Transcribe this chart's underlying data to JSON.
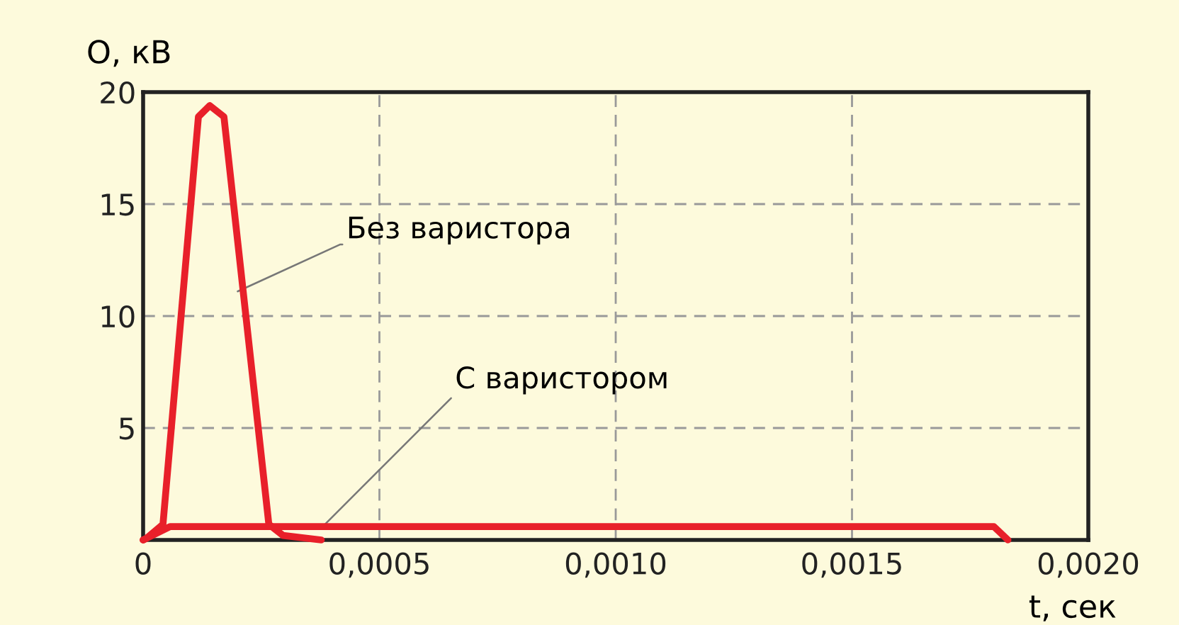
{
  "chart_data": {
    "type": "line",
    "xlabel": "t, сек",
    "ylabel": "О, кВ",
    "series": [
      {
        "color": "#e8202a",
        "x": [
          0,
          6e-06,
          4.2e-05,
          0.000117,
          0.000141,
          0.000171,
          0.000266,
          0.000296,
          0.000377
        ],
        "values": [
          0,
          0.06,
          0.7,
          18.9,
          19.4,
          18.9,
          0.7,
          0.2,
          0
        ]
      },
      {
        "color": "#e8202a",
        "x": [
          0,
          5.7e-05,
          0.0018,
          0.00183
        ],
        "values": [
          0,
          0.6,
          0.6,
          0
        ]
      }
    ],
    "annotations": [
      {
        "text": "Без варистора",
        "x": 0.0002,
        "y": 11.1
      },
      {
        "text": "С варистором",
        "x": 0.00038,
        "y": 0.6
      }
    ],
    "xlim": [
      0,
      0.002
    ],
    "ylim": [
      0,
      20
    ],
    "xticks": [
      {
        "value": 0,
        "label": "0"
      },
      {
        "value": 0.0005,
        "label": "0,0005"
      },
      {
        "value": 0.001,
        "label": "0,0010"
      },
      {
        "value": 0.0015,
        "label": "0,0015"
      },
      {
        "value": 0.002,
        "label": "0,0020"
      }
    ],
    "yticks": [
      5,
      10,
      15,
      20
    ],
    "grid": true,
    "line_style": "solid",
    "marker": "none"
  }
}
